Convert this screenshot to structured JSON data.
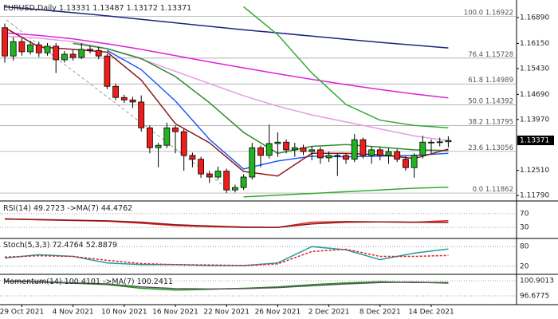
{
  "chart_data": [
    {
      "type": "candlestick",
      "title": "EURUSD,Daily",
      "categories": [
        null,
        null,
        "29 Oct 2021",
        null,
        null,
        null,
        null,
        null,
        "4 Nov 2021",
        null,
        null,
        null,
        null,
        null,
        "10 Nov 2021",
        null,
        null,
        null,
        null,
        null,
        "16 Nov 2021",
        null,
        null,
        null,
        null,
        null,
        "22 Nov 2021",
        null,
        null,
        null,
        null,
        null,
        "26 Nov 2021",
        null,
        null,
        null,
        null,
        null,
        "2 Dec 2021",
        null,
        null,
        null,
        null,
        null,
        "8 Dec 2021",
        null,
        null,
        null,
        null,
        null,
        "14 Dec 2021",
        null,
        null
      ],
      "open": [
        1.166,
        1.1579,
        1.162,
        1.1591,
        1.1611,
        1.1588,
        1.1607,
        1.1568,
        1.1584,
        1.1575,
        1.1598,
        1.1595,
        1.1579,
        1.1492,
        1.146,
        1.1453,
        1.1447,
        1.1373,
        1.1316,
        1.1323,
        1.1373,
        1.1362,
        1.1294,
        1.1283,
        1.1241,
        1.1232,
        1.1249,
        1.1195,
        1.1202,
        1.1232,
        1.1316,
        1.1294,
        1.1328,
        1.1332,
        1.131,
        1.1316,
        1.1305,
        1.131,
        1.1287,
        1.1294,
        1.1294,
        1.1283,
        1.1339,
        1.1294,
        1.131,
        1.1294,
        1.1305,
        1.1283,
        1.1259,
        1.1294,
        1.1332,
        1.1332,
        1.13331
      ],
      "high": [
        1.1672,
        1.1633,
        1.163,
        1.1622,
        1.162,
        1.1616,
        1.1616,
        1.1593,
        1.1596,
        1.1616,
        1.1608,
        1.1605,
        1.1585,
        1.15,
        1.1468,
        1.1462,
        1.1466,
        1.138,
        1.133,
        1.1388,
        1.138,
        1.137,
        1.1302,
        1.129,
        1.125,
        1.1262,
        1.1256,
        1.121,
        1.124,
        1.133,
        1.1322,
        1.1382,
        1.136,
        1.134,
        1.133,
        1.1325,
        1.132,
        1.1318,
        1.1305,
        1.13,
        1.13,
        1.1355,
        1.1345,
        1.132,
        1.1318,
        1.1315,
        1.1312,
        1.1292,
        1.13,
        1.135,
        1.134,
        1.1345,
        1.13487
      ],
      "low": [
        1.156,
        1.1566,
        1.158,
        1.1583,
        1.1576,
        1.158,
        1.153,
        1.156,
        1.1566,
        1.157,
        1.1586,
        1.157,
        1.1484,
        1.1452,
        1.1444,
        1.143,
        1.1362,
        1.13,
        1.126,
        1.1315,
        1.13,
        1.125,
        1.126,
        1.123,
        1.1215,
        1.1225,
        1.1186,
        1.1188,
        1.1195,
        1.1225,
        1.126,
        1.1285,
        1.129,
        1.13,
        1.129,
        1.1295,
        1.128,
        1.127,
        1.1275,
        1.1235,
        1.127,
        1.1275,
        1.1285,
        1.127,
        1.128,
        1.127,
        1.1275,
        1.125,
        1.123,
        1.1285,
        1.13,
        1.132,
        1.13172
      ],
      "close": [
        1.1579,
        1.162,
        1.1591,
        1.1611,
        1.1588,
        1.1607,
        1.1568,
        1.1584,
        1.1575,
        1.1598,
        1.1595,
        1.1579,
        1.1492,
        1.146,
        1.1453,
        1.1447,
        1.1373,
        1.1316,
        1.1323,
        1.1373,
        1.1362,
        1.1294,
        1.1283,
        1.1241,
        1.1232,
        1.1249,
        1.1195,
        1.1202,
        1.1232,
        1.1316,
        1.1294,
        1.1328,
        1.1332,
        1.131,
        1.1316,
        1.1305,
        1.131,
        1.1287,
        1.1294,
        1.1294,
        1.1283,
        1.1339,
        1.1294,
        1.131,
        1.1294,
        1.1305,
        1.1283,
        1.1259,
        1.1294,
        1.1332,
        1.1332,
        1.1333,
        1.13371
      ],
      "up_color": "#22b322",
      "down_color": "#ee1c1c",
      "ylim": [
        1.1168,
        1.1728
      ],
      "yticks": [
        {
          "value": 1.1689,
          "label": "1.16890"
        },
        {
          "value": 1.1615,
          "label": "1.16150"
        },
        {
          "value": 1.1543,
          "label": "1.15430"
        },
        {
          "value": 1.1469,
          "label": "1.14690"
        },
        {
          "value": 1.1397,
          "label": "1.13970"
        },
        {
          "value": 1.1251,
          "label": "1.12510"
        },
        {
          "value": 1.1179,
          "label": "1.11790"
        }
      ],
      "fib_levels": [
        {
          "level": "100.0",
          "value": 1.16922
        },
        {
          "level": "76.4",
          "value": 1.15728
        },
        {
          "level": "61.8",
          "value": 1.14989
        },
        {
          "level": "50.0",
          "value": 1.14392
        },
        {
          "level": "38.2",
          "value": 1.13795
        },
        {
          "level": "23.6",
          "value": 1.13056
        },
        {
          "level": "0.0",
          "value": 1.11862
        }
      ],
      "overlays": [
        {
          "color": "#1a237e",
          "x": [
            0,
            4,
            8,
            12,
            16,
            20,
            24,
            28,
            32,
            36,
            40,
            44,
            48,
            52
          ],
          "values": [
            1.172,
            1.1712,
            1.1703,
            1.1694,
            1.1684,
            1.1674,
            1.1664,
            1.1654,
            1.1645,
            1.1636,
            1.1627,
            1.1618,
            1.161,
            1.1602
          ]
        },
        {
          "color": "#dd22dd",
          "x": [
            0,
            4,
            8,
            12,
            16,
            20,
            24,
            28,
            32,
            36,
            40,
            44,
            48,
            52
          ],
          "values": [
            1.1645,
            1.1638,
            1.1628,
            1.1614,
            1.1598,
            1.158,
            1.1562,
            1.1545,
            1.1528,
            1.1512,
            1.1497,
            1.1483,
            1.147,
            1.1459
          ]
        },
        {
          "color": "#e59be5",
          "x": [
            0,
            4,
            8,
            12,
            16,
            20,
            24,
            28,
            32,
            36,
            40,
            44,
            48,
            52
          ],
          "values": [
            1.1636,
            1.163,
            1.162,
            1.16,
            1.157,
            1.1535,
            1.15,
            1.1465,
            1.1435,
            1.141,
            1.139,
            1.137,
            1.135,
            1.1336
          ]
        },
        {
          "color": "#33aa33",
          "x": [
            28,
            32,
            36,
            40,
            44,
            48,
            52
          ],
          "values": [
            1.172,
            1.164,
            1.153,
            1.144,
            1.1395,
            1.138,
            1.1373
          ]
        },
        {
          "color": "#33aa33",
          "x": [
            28,
            32,
            36,
            40,
            44,
            48,
            52
          ],
          "values": [
            1.1175,
            1.118,
            1.1185,
            1.119,
            1.1195,
            1.12,
            1.1203
          ]
        },
        {
          "color": "#1e5cff",
          "x": [
            12,
            16,
            20,
            24,
            28,
            32,
            36,
            40,
            44,
            48,
            52
          ],
          "values": [
            1.1595,
            1.154,
            1.145,
            1.134,
            1.1255,
            1.1278,
            1.1292,
            1.129,
            1.1292,
            1.1294,
            1.13
          ]
        },
        {
          "color": "#2e8b2e",
          "x": [
            8,
            12,
            16,
            20,
            24,
            28,
            32,
            36,
            40,
            44,
            48,
            52
          ],
          "values": [
            1.1615,
            1.16,
            1.1572,
            1.152,
            1.1445,
            1.136,
            1.13,
            1.132,
            1.1325,
            1.1318,
            1.131,
            1.1308
          ]
        },
        {
          "color": "#8b1a1a",
          "x": [
            0,
            4,
            8,
            12,
            16,
            20,
            24,
            28,
            32,
            36,
            40,
            44,
            48,
            52
          ],
          "values": [
            1.166,
            1.1605,
            1.1598,
            1.159,
            1.151,
            1.1385,
            1.133,
            1.1248,
            1.1235,
            1.13,
            1.13,
            1.1296,
            1.1285,
            1.1312
          ]
        }
      ]
    },
    {
      "type": "line",
      "ylim": [
        0,
        100
      ],
      "yticks": [
        30,
        70
      ],
      "x": [
        0,
        4,
        8,
        12,
        16,
        20,
        24,
        28,
        32,
        36,
        40,
        44,
        48,
        52
      ],
      "series": [
        {
          "name": "RSI(14)",
          "color": "#e02020",
          "values": [
            55,
            52,
            50,
            48,
            42,
            35,
            32,
            30,
            30,
            45,
            47,
            46,
            45,
            49.2723
          ]
        },
        {
          "name": "->MA(7)",
          "color": "#8b1a1a",
          "values": [
            54,
            53,
            51,
            49,
            45,
            38,
            34,
            31,
            30,
            40,
            45,
            46,
            45,
            44.4762
          ]
        }
      ]
    },
    {
      "type": "line",
      "ylim": [
        0,
        100
      ],
      "yticks": [
        20,
        80
      ],
      "x": [
        0,
        4,
        8,
        12,
        16,
        20,
        24,
        28,
        32,
        36,
        40,
        44,
        48,
        52
      ],
      "series": [
        {
          "name": "Stoch(5,3,3)",
          "color": "#20a0a0",
          "values": [
            45,
            55,
            50,
            30,
            25,
            25,
            22,
            22,
            30,
            80,
            70,
            40,
            60,
            72.4764
          ]
        },
        {
          "color": "#e02020",
          "dash": true,
          "values": [
            48,
            52,
            50,
            38,
            28,
            25,
            24,
            22,
            27,
            65,
            72,
            50,
            50,
            52.8879
          ]
        }
      ]
    },
    {
      "type": "line",
      "ylim": [
        94.68,
        102.01
      ],
      "yticks": [
        100.9013,
        96.6775
      ],
      "x": [
        0,
        4,
        8,
        12,
        16,
        20,
        24,
        28,
        32,
        36,
        40,
        44,
        48,
        52
      ],
      "series": [
        {
          "name": "Momentum(14)",
          "color": "#229922",
          "values": [
            100.8,
            100.5,
            100.2,
            99.8,
            98.8,
            98.3,
            98.5,
            98.8,
            99.2,
            99.8,
            100.3,
            100.6,
            100.4,
            100.4101
          ]
        },
        {
          "name": "->MA(7)",
          "color": "#555555",
          "values": [
            100.7,
            100.6,
            100.3,
            100.0,
            99.2,
            98.7,
            98.6,
            98.7,
            99.0,
            99.5,
            100.0,
            100.4,
            100.5,
            100.2411
          ]
        }
      ]
    }
  ]
}
